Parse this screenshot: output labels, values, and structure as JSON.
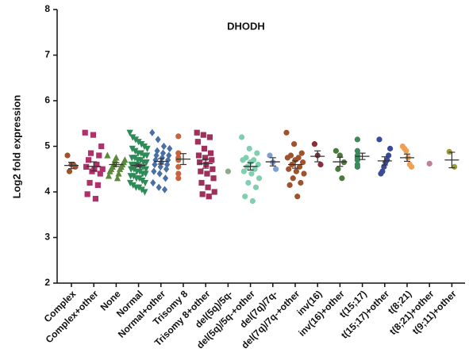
{
  "chart_data": {
    "type": "dot",
    "title": "DHODH",
    "y_label": "Log2 fold expression",
    "ylim": [
      2,
      8
    ],
    "yticks": [
      2,
      3,
      4,
      5,
      6,
      7,
      8
    ],
    "series": [
      {
        "name": "Complex",
        "color": "#a0522d",
        "marker": "circle",
        "values": [
          4.8,
          4.6,
          4.55,
          4.45,
          4.6
        ],
        "mean": 4.58,
        "error": 0.07
      },
      {
        "name": "Complex+other",
        "color": "#b0306a",
        "marker": "square",
        "values": [
          5.3,
          5.25,
          5.0,
          4.85,
          4.8,
          4.7,
          4.6,
          4.55,
          4.5,
          4.5,
          4.45,
          4.4,
          4.2,
          4.15,
          3.95,
          3.85
        ],
        "mean": 4.56,
        "error": 0.1
      },
      {
        "name": "None",
        "color": "#5a8a3a",
        "marker": "triangle",
        "values": [
          4.8,
          4.75,
          4.7,
          4.7,
          4.65,
          4.6,
          4.6,
          4.55,
          4.55,
          4.5,
          4.5,
          4.45,
          4.4,
          4.35,
          4.3
        ],
        "mean": 4.6,
        "error": 0.04
      },
      {
        "name": "Normal",
        "color": "#2e8b57",
        "marker": "triangle-down",
        "values": [
          5.3,
          5.2,
          5.15,
          5.1,
          5.05,
          5.0,
          4.95,
          4.95,
          4.9,
          4.85,
          4.85,
          4.8,
          4.8,
          4.75,
          4.75,
          4.7,
          4.7,
          4.65,
          4.65,
          4.6,
          4.6,
          4.6,
          4.55,
          4.55,
          4.5,
          4.5,
          4.5,
          4.45,
          4.45,
          4.4,
          4.4,
          4.35,
          4.35,
          4.3,
          4.3,
          4.25,
          4.2,
          4.2,
          4.15,
          4.1,
          4.1,
          4.05,
          4.0
        ],
        "mean": 4.58,
        "error": 0.03
      },
      {
        "name": "Normal+other",
        "color": "#4a6fa5",
        "marker": "diamond",
        "values": [
          5.3,
          5.15,
          5.0,
          4.95,
          4.9,
          4.85,
          4.8,
          4.8,
          4.75,
          4.7,
          4.7,
          4.65,
          4.6,
          4.6,
          4.55,
          4.5,
          4.45,
          4.4,
          4.3,
          4.2,
          4.1,
          4.05
        ],
        "mean": 4.67,
        "error": 0.06
      },
      {
        "name": "Trisomy 8",
        "color": "#c8643c",
        "marker": "circle",
        "values": [
          5.22,
          4.85,
          4.75,
          4.7,
          4.55,
          4.4,
          4.3
        ],
        "mean": 4.72,
        "error": 0.12
      },
      {
        "name": "Trisomy 8+other",
        "color": "#a0305a",
        "marker": "square",
        "values": [
          5.3,
          5.25,
          5.2,
          5.1,
          4.95,
          4.85,
          4.8,
          4.75,
          4.7,
          4.65,
          4.6,
          4.5,
          4.45,
          4.4,
          4.3,
          4.2,
          4.1,
          4.0,
          3.95,
          3.9
        ],
        "mean": 4.62,
        "error": 0.1
      },
      {
        "name": "del(5q)/5q-",
        "color": "#8aaa8a",
        "marker": "circle",
        "values": [
          4.45
        ],
        "mean": null,
        "error": null
      },
      {
        "name": "del(5q)/5q-+other",
        "color": "#7fcfb0",
        "marker": "circle",
        "values": [
          5.2,
          4.95,
          4.85,
          4.75,
          4.7,
          4.7,
          4.65,
          4.6,
          4.55,
          4.5,
          4.45,
          4.4,
          4.3,
          4.2,
          4.1,
          3.9,
          3.8
        ],
        "mean": 4.56,
        "error": 0.08
      },
      {
        "name": "del(7q)/7q-",
        "color": "#7fa0d0",
        "marker": "circle",
        "values": [
          4.8,
          4.65,
          4.5
        ],
        "mean": 4.66,
        "error": 0.09
      },
      {
        "name": "del(7q)/7q-+other",
        "color": "#a0522d",
        "marker": "circle",
        "values": [
          5.3,
          5.05,
          4.85,
          4.8,
          4.75,
          4.75,
          4.7,
          4.65,
          4.6,
          4.55,
          4.5,
          4.45,
          4.4,
          4.3,
          4.2,
          4.15,
          3.9
        ],
        "mean": 4.6,
        "error": 0.08
      },
      {
        "name": "inv(16)",
        "color": "#8b2e3c",
        "marker": "circle",
        "values": [
          5.05,
          4.8,
          4.6
        ],
        "mean": 4.78,
        "error": 0.12
      },
      {
        "name": "inv(16)+other",
        "color": "#4a7a3a",
        "marker": "circle",
        "values": [
          4.9,
          4.8,
          4.65,
          4.5,
          4.3
        ],
        "mean": 4.66,
        "error": 0.1
      },
      {
        "name": "t(15;17)",
        "color": "#3a8a5a",
        "marker": "circle",
        "values": [
          5.15,
          4.9,
          4.8,
          4.75,
          4.7,
          4.6,
          4.55
        ],
        "mean": 4.78,
        "error": 0.07
      },
      {
        "name": "t(15;17)+other",
        "color": "#3a4a9a",
        "marker": "circle",
        "values": [
          5.15,
          4.95,
          4.8,
          4.7,
          4.65,
          4.55,
          4.45,
          4.4
        ],
        "mean": 4.68,
        "error": 0.09
      },
      {
        "name": "t(8;21)",
        "color": "#f0a050",
        "marker": "circle",
        "values": [
          5.0,
          4.95,
          4.9,
          4.75,
          4.6,
          4.55
        ],
        "mean": 4.75,
        "error": 0.08
      },
      {
        "name": "t(8;21)+other",
        "color": "#c08090",
        "marker": "circle",
        "values": [
          4.62
        ],
        "mean": null,
        "error": null
      },
      {
        "name": "t(9;11)+other",
        "color": "#9a9a3a",
        "marker": "circle",
        "values": [
          4.88,
          4.55
        ],
        "mean": 4.7,
        "error": 0.17
      }
    ]
  }
}
